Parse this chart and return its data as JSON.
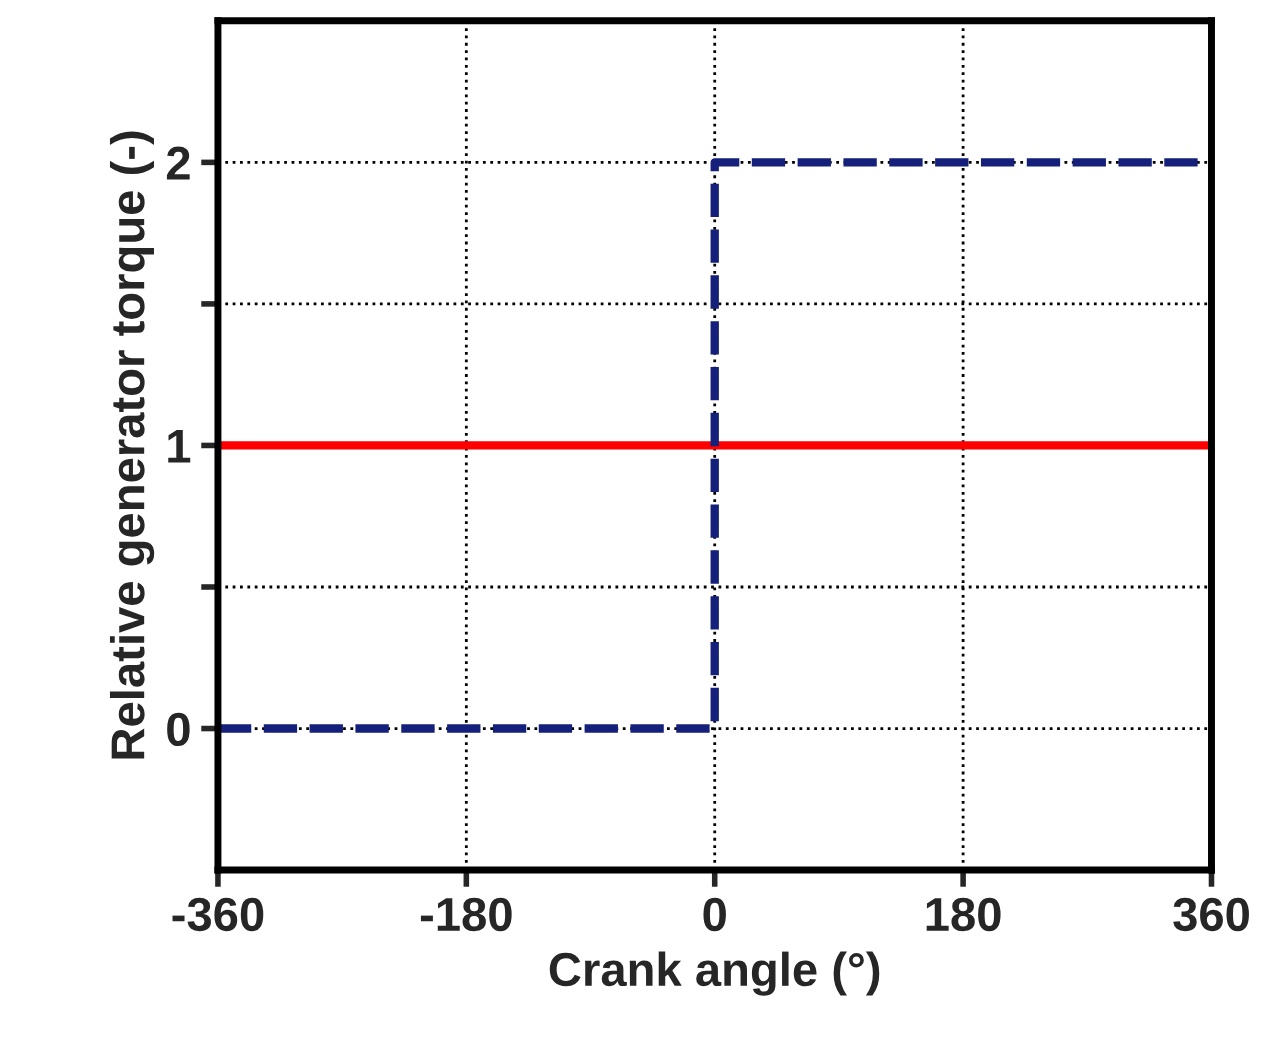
{
  "chart_data": {
    "type": "line",
    "xlabel": "Crank angle (°)",
    "ylabel": "Relative generator torque (-)",
    "xlim": [
      -360,
      360
    ],
    "xticks": [
      -360,
      -180,
      0,
      180,
      360
    ],
    "ylim": [
      -0.5,
      2.5
    ],
    "yticks": [
      0,
      {
        "value": 0.5,
        "label": null
      },
      1,
      {
        "value": 1.5,
        "label": null
      },
      2
    ],
    "grid": true,
    "legend": false,
    "series": [
      {
        "color": "#ff0000",
        "x": [
          -360,
          360
        ],
        "values": [
          1,
          1
        ],
        "line_style": "solid"
      },
      {
        "color": "#14207a",
        "x": [
          -360,
          0,
          0,
          360
        ],
        "values": [
          0,
          0,
          2,
          2
        ],
        "line_style": "dashed"
      }
    ]
  }
}
